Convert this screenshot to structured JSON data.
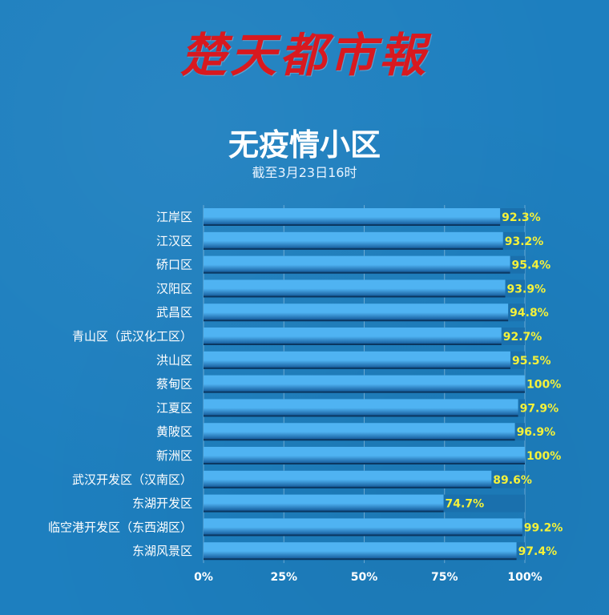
{
  "header": {
    "logo_text": "楚天都市報"
  },
  "chart_data": {
    "type": "bar",
    "orientation": "horizontal",
    "title": "无疫情小区",
    "subtitle": "截至3月23日16时",
    "categories": [
      "江岸区",
      "江汉区",
      "硚口区",
      "汉阳区",
      "武昌区",
      "青山区（武汉化工区）",
      "洪山区",
      "蔡甸区",
      "江夏区",
      "黄陂区",
      "新洲区",
      "武汉开发区（汉南区）",
      "东湖开发区",
      "临空港开发区（东西湖区）",
      "东湖风景区"
    ],
    "values": [
      92.3,
      93.2,
      95.4,
      93.9,
      94.8,
      92.7,
      95.5,
      100,
      97.9,
      96.9,
      100,
      89.6,
      74.7,
      99.2,
      97.4
    ],
    "value_labels": [
      "92.3%",
      "93.2%",
      "95.4%",
      "93.9%",
      "94.8%",
      "92.7%",
      "95.5%",
      "100%",
      "97.9%",
      "96.9%",
      "100%",
      "89.6%",
      "74.7%",
      "99.2%",
      "97.4%"
    ],
    "x_ticks": [
      0,
      25,
      50,
      75,
      100
    ],
    "x_tick_labels": [
      "0%",
      "25%",
      "50%",
      "75%",
      "100%"
    ],
    "xlim": [
      0,
      100
    ],
    "grid": true,
    "colors": {
      "background": "#1d7fbf",
      "bar_light": "#4fb3f2",
      "bar_dark": "#0b4c8c",
      "track": "#1a70ad",
      "value_label": "#f4f13a",
      "category_label": "#ffffff",
      "logo": "#d8191f"
    }
  }
}
